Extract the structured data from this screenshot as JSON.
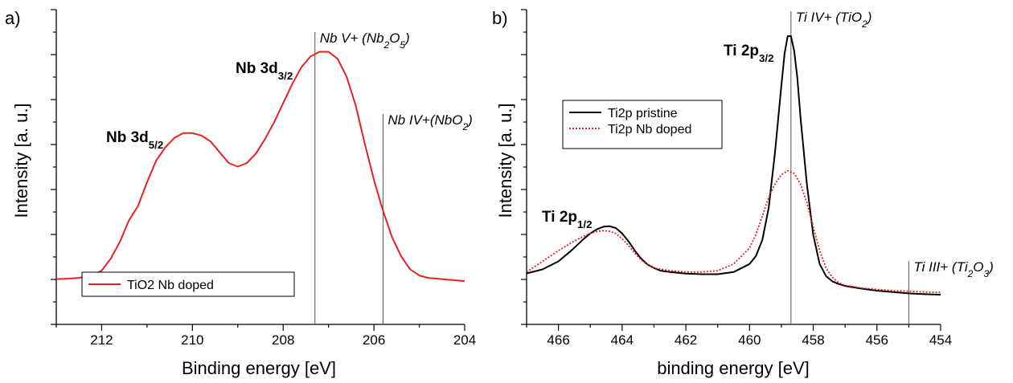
{
  "chart_data": [
    {
      "panel": "a)",
      "type": "line",
      "xlabel": "Binding energy [eV]",
      "ylabel": "Intensity [a. u.]",
      "xlim": [
        213,
        204
      ],
      "ylim": [
        0,
        1
      ],
      "x_reversed": true,
      "xticks": [
        212,
        210,
        208,
        206,
        204
      ],
      "y_tick_labels": false,
      "legend": {
        "position": "bottom-left",
        "entries": [
          "TiO2 Nb doped"
        ]
      },
      "series": [
        {
          "name": "TiO2 Nb doped",
          "color": "#e8201e",
          "dash": "solid",
          "x": [
            213.0,
            212.8,
            212.5,
            212.2,
            212.0,
            211.8,
            211.6,
            211.4,
            211.2,
            211.0,
            210.8,
            210.6,
            210.4,
            210.2,
            210.0,
            209.8,
            209.6,
            209.4,
            209.2,
            209.0,
            208.8,
            208.6,
            208.4,
            208.2,
            208.0,
            207.8,
            207.6,
            207.4,
            207.2,
            207.0,
            206.8,
            206.6,
            206.4,
            206.2,
            206.0,
            205.8,
            205.6,
            205.4,
            205.2,
            205.0,
            204.8,
            204.5,
            204.2,
            204.0
          ],
          "y": [
            0.035,
            0.036,
            0.04,
            0.052,
            0.07,
            0.12,
            0.19,
            0.28,
            0.34,
            0.44,
            0.53,
            0.585,
            0.625,
            0.645,
            0.645,
            0.635,
            0.61,
            0.565,
            0.52,
            0.505,
            0.52,
            0.56,
            0.62,
            0.69,
            0.77,
            0.85,
            0.92,
            0.965,
            0.985,
            0.985,
            0.955,
            0.88,
            0.76,
            0.6,
            0.45,
            0.32,
            0.21,
            0.13,
            0.075,
            0.05,
            0.04,
            0.035,
            0.03,
            0.027
          ]
        }
      ],
      "reference_lines": [
        {
          "x": 207.3,
          "label_main": "Nb V+ (Nb",
          "label_sub": "2",
          "label_mid": "O",
          "label_sub2": "5",
          "label_end": ")"
        },
        {
          "x": 205.8,
          "label_main": "Nb IV+(NbO",
          "label_sub": "2",
          "label_end": ")"
        }
      ],
      "annotations": [
        {
          "main": "Nb 3d",
          "sub": "5/2",
          "x": 210.9,
          "y": 0.7
        },
        {
          "main": "Nb 3d",
          "sub": "3/2",
          "x": 208.5,
          "y": 0.91
        }
      ]
    },
    {
      "panel": "b)",
      "type": "line",
      "xlabel": "binding energy [eV]",
      "ylabel": "Intensity [a. u.]",
      "xlim": [
        467,
        454
      ],
      "ylim": [
        0,
        1
      ],
      "x_reversed": true,
      "xticks": [
        466,
        464,
        462,
        460,
        458,
        456,
        454
      ],
      "y_tick_labels": false,
      "legend": {
        "position": "top-left",
        "entries": [
          "Ti2p pristine",
          "Ti2p Nb doped"
        ]
      },
      "series": [
        {
          "name": "Ti2p pristine",
          "color": "#000000",
          "dash": "solid",
          "x": [
            467.0,
            466.5,
            466.0,
            465.6,
            465.2,
            465.0,
            464.8,
            464.6,
            464.4,
            464.2,
            464.0,
            463.8,
            463.6,
            463.4,
            463.2,
            463.0,
            462.8,
            462.5,
            462.0,
            461.5,
            461.0,
            460.5,
            460.0,
            459.8,
            459.6,
            459.4,
            459.2,
            459.0,
            458.9,
            458.8,
            458.7,
            458.6,
            458.5,
            458.4,
            458.2,
            458.0,
            457.8,
            457.6,
            457.4,
            457.2,
            457.0,
            456.5,
            456.0,
            455.5,
            455.0,
            454.5,
            454.0
          ],
          "y": [
            0.095,
            0.11,
            0.14,
            0.18,
            0.225,
            0.245,
            0.26,
            0.27,
            0.272,
            0.265,
            0.245,
            0.215,
            0.18,
            0.15,
            0.128,
            0.115,
            0.105,
            0.1,
            0.094,
            0.092,
            0.092,
            0.1,
            0.13,
            0.16,
            0.22,
            0.34,
            0.55,
            0.8,
            0.92,
            0.985,
            0.985,
            0.93,
            0.83,
            0.68,
            0.43,
            0.24,
            0.13,
            0.085,
            0.065,
            0.055,
            0.048,
            0.038,
            0.03,
            0.025,
            0.02,
            0.017,
            0.015
          ]
        },
        {
          "name": "Ti2p Nb doped",
          "color": "#e8201e",
          "dash": "dotted",
          "x": [
            467.0,
            466.5,
            466.0,
            465.6,
            465.2,
            465.0,
            464.8,
            464.6,
            464.4,
            464.2,
            464.0,
            463.8,
            463.6,
            463.4,
            463.2,
            463.0,
            462.5,
            462.0,
            461.5,
            461.0,
            460.5,
            460.0,
            459.8,
            459.6,
            459.4,
            459.2,
            459.0,
            458.8,
            458.6,
            458.4,
            458.2,
            458.0,
            457.8,
            457.6,
            457.4,
            457.2,
            457.0,
            456.5,
            456.0,
            455.5,
            455.0,
            454.5,
            454.0
          ],
          "y": [
            0.1,
            0.14,
            0.18,
            0.21,
            0.235,
            0.245,
            0.252,
            0.255,
            0.253,
            0.245,
            0.225,
            0.2,
            0.17,
            0.145,
            0.127,
            0.115,
            0.105,
            0.1,
            0.1,
            0.105,
            0.13,
            0.19,
            0.24,
            0.31,
            0.38,
            0.43,
            0.465,
            0.48,
            0.47,
            0.43,
            0.36,
            0.27,
            0.18,
            0.115,
            0.08,
            0.06,
            0.05,
            0.04,
            0.035,
            0.03,
            0.028,
            0.025,
            0.024
          ]
        }
      ],
      "reference_lines": [
        {
          "x": 458.7,
          "label_main": "Ti IV+ (TiO",
          "label_sub": "2",
          "label_end": ")"
        },
        {
          "x": 455.0,
          "label_main": "Ti III+ (Ti",
          "label_sub": "2",
          "label_mid": "O",
          "label_sub2": "3",
          "label_end": ")"
        }
      ],
      "annotations": [
        {
          "main": "Ti 2p",
          "sub": "3/2",
          "x": 460.8,
          "y": 0.9
        },
        {
          "main": "Ti 2p",
          "sub": "1/2",
          "x": 465.5,
          "y": 0.36
        }
      ]
    }
  ]
}
